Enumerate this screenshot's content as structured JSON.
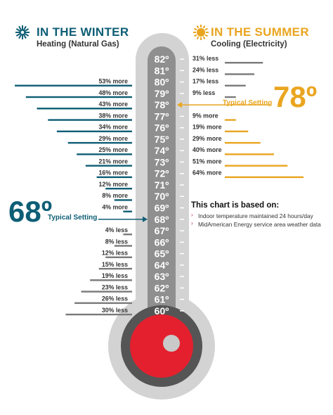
{
  "header": {
    "winter_title": "IN THE WINTER",
    "winter_subtitle": "Heating (Natural Gas)",
    "summer_title": "IN THE SUMMER",
    "summer_subtitle": "Cooling (Electricity)"
  },
  "winter": {
    "typical_value": "68º",
    "typical_label": "Typical Setting"
  },
  "summer": {
    "typical_value": "78º",
    "typical_label": "Typical Setting"
  },
  "notes": {
    "title": "This chart is based on:",
    "items": [
      "Indoor temperature maintained 24 hours/day",
      "MidAmerican Energy service area weather data"
    ]
  },
  "colors": {
    "winter": "#0e5e75",
    "summer": "#eaa520",
    "neutral_bar": "#7a7a7a",
    "thermometer_body": "#d3d3d3",
    "tube": "#8f8f8f",
    "bulb": "#e4202e"
  },
  "chart_data": {
    "type": "bar",
    "temperatures": [
      "82º",
      "81º",
      "80º",
      "79º",
      "78º",
      "77º",
      "76º",
      "75º",
      "74º",
      "73º",
      "72º",
      "71º",
      "70º",
      "69º",
      "68º",
      "67º",
      "66º",
      "65º",
      "64º",
      "63º",
      "62º",
      "61º",
      "60º"
    ],
    "heating": {
      "typical_setting": "68º",
      "labels": [
        "53% more",
        "48% more",
        "43% more",
        "38% more",
        "34% more",
        "29% more",
        "25% more",
        "21% more",
        "16% more",
        "12% more",
        "8% more",
        "4% more",
        "",
        "4% less",
        "8% less",
        "12% less",
        "15% less",
        "19% less",
        "23% less",
        "26% less",
        "30% less"
      ],
      "temps": [
        "80º",
        "79º",
        "78º",
        "77º",
        "76º",
        "75º",
        "74º",
        "73º",
        "72º",
        "71º",
        "70º",
        "69º",
        "68º",
        "67º",
        "66º",
        "65º",
        "64º",
        "63º",
        "62º",
        "61º",
        "60º"
      ],
      "values": [
        53,
        48,
        43,
        38,
        34,
        29,
        25,
        21,
        16,
        12,
        8,
        4,
        0,
        -4,
        -8,
        -12,
        -15,
        -19,
        -23,
        -26,
        -30
      ]
    },
    "cooling": {
      "typical_setting": "78º",
      "labels": [
        "31% less",
        "24% less",
        "17% less",
        "9% less",
        "",
        "9% more",
        "19% more",
        "29% more",
        "40% more",
        "51% more",
        "64% more"
      ],
      "temps": [
        "82º",
        "81º",
        "80º",
        "79º",
        "78º",
        "77º",
        "76º",
        "75º",
        "74º",
        "73º",
        "72º"
      ],
      "values": [
        -31,
        -24,
        -17,
        -9,
        0,
        9,
        19,
        29,
        40,
        51,
        64
      ]
    }
  }
}
